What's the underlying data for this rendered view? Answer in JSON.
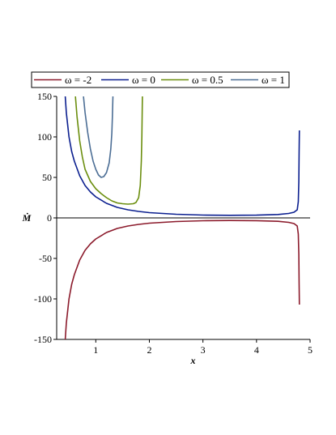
{
  "chart_data": {
    "type": "line",
    "xlabel": "x",
    "ylabel": "Ṁ",
    "xlim": [
      0.27,
      5.0
    ],
    "ylim": [
      -150,
      150
    ],
    "x_ticks": [
      "1",
      "2",
      "3",
      "4",
      "5"
    ],
    "y_ticks": [
      "-150",
      "-100",
      "-50",
      "0",
      "50",
      "100",
      "150"
    ],
    "grid": false,
    "legend_position": "top",
    "series": [
      {
        "name": "ω = -2",
        "color": "#8b1a2b",
        "points": [
          [
            0.43,
            -150
          ],
          [
            0.45,
            -130
          ],
          [
            0.5,
            -100
          ],
          [
            0.55,
            -82
          ],
          [
            0.6,
            -70
          ],
          [
            0.7,
            -52
          ],
          [
            0.8,
            -40
          ],
          [
            0.9,
            -32
          ],
          [
            1.0,
            -26
          ],
          [
            1.2,
            -18
          ],
          [
            1.4,
            -13
          ],
          [
            1.6,
            -10
          ],
          [
            1.8,
            -8
          ],
          [
            2.0,
            -6.5
          ],
          [
            2.5,
            -4.5
          ],
          [
            3.0,
            -3.5
          ],
          [
            3.5,
            -3.2
          ],
          [
            4.0,
            -3.4
          ],
          [
            4.4,
            -4.2
          ],
          [
            4.6,
            -5.5
          ],
          [
            4.7,
            -7
          ],
          [
            4.76,
            -10
          ],
          [
            4.78,
            -20
          ],
          [
            4.79,
            -45
          ],
          [
            4.795,
            -80
          ],
          [
            4.8,
            -107
          ]
        ]
      },
      {
        "name": "ω = 0",
        "color": "#0b1f8f",
        "points": [
          [
            0.43,
            150
          ],
          [
            0.45,
            130
          ],
          [
            0.5,
            100
          ],
          [
            0.55,
            82
          ],
          [
            0.6,
            70
          ],
          [
            0.7,
            52
          ],
          [
            0.8,
            40
          ],
          [
            0.9,
            32
          ],
          [
            1.0,
            26
          ],
          [
            1.2,
            18
          ],
          [
            1.4,
            13
          ],
          [
            1.6,
            10
          ],
          [
            1.8,
            8
          ],
          [
            2.0,
            6.5
          ],
          [
            2.5,
            4.5
          ],
          [
            3.0,
            3.5
          ],
          [
            3.5,
            3.2
          ],
          [
            4.0,
            3.4
          ],
          [
            4.4,
            4.2
          ],
          [
            4.6,
            5.5
          ],
          [
            4.7,
            7
          ],
          [
            4.76,
            10
          ],
          [
            4.78,
            20
          ],
          [
            4.79,
            45
          ],
          [
            4.795,
            80
          ],
          [
            4.8,
            108
          ]
        ]
      },
      {
        "name": "ω = 0.5",
        "color": "#6b8e0e",
        "points": [
          [
            0.62,
            150
          ],
          [
            0.65,
            125
          ],
          [
            0.7,
            95
          ],
          [
            0.75,
            75
          ],
          [
            0.8,
            60
          ],
          [
            0.9,
            45
          ],
          [
            1.0,
            36
          ],
          [
            1.1,
            30
          ],
          [
            1.2,
            25
          ],
          [
            1.3,
            21
          ],
          [
            1.4,
            18.5
          ],
          [
            1.5,
            17.5
          ],
          [
            1.6,
            17
          ],
          [
            1.7,
            17.5
          ],
          [
            1.75,
            19
          ],
          [
            1.8,
            25
          ],
          [
            1.83,
            40
          ],
          [
            1.85,
            70
          ],
          [
            1.86,
            100
          ],
          [
            1.87,
            150
          ]
        ]
      },
      {
        "name": "ω = 1",
        "color": "#4c6e95",
        "points": [
          [
            0.77,
            150
          ],
          [
            0.8,
            130
          ],
          [
            0.85,
            105
          ],
          [
            0.9,
            85
          ],
          [
            0.95,
            70
          ],
          [
            1.0,
            60
          ],
          [
            1.05,
            53
          ],
          [
            1.1,
            50
          ],
          [
            1.15,
            51
          ],
          [
            1.2,
            56
          ],
          [
            1.25,
            68
          ],
          [
            1.28,
            85
          ],
          [
            1.3,
            105
          ],
          [
            1.31,
            125
          ],
          [
            1.32,
            150
          ]
        ]
      }
    ]
  }
}
